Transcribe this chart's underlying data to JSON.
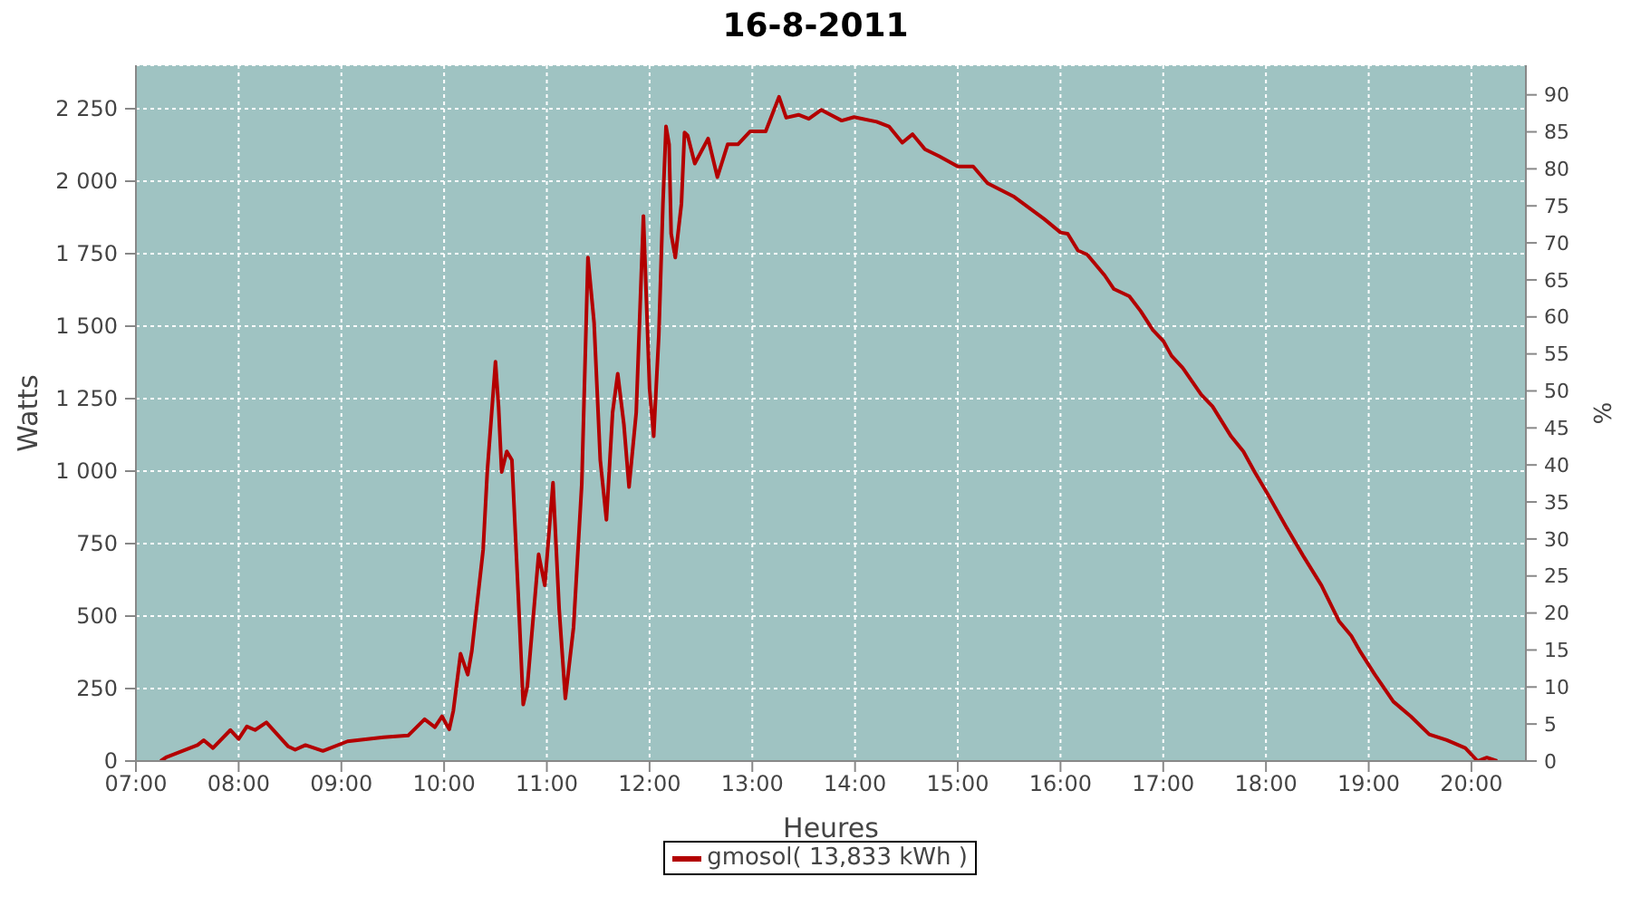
{
  "chart_data": {
    "type": "line",
    "title": "16-8-2011",
    "xlabel": "Heures",
    "ylabel": "Watts",
    "y2label": "%",
    "xlim": [
      7,
      20.53
    ],
    "xticks": [
      {
        "value": 7,
        "label": "07:00"
      },
      {
        "value": 8,
        "label": "08:00"
      },
      {
        "value": 9,
        "label": "09:00"
      },
      {
        "value": 10,
        "label": "10:00"
      },
      {
        "value": 11,
        "label": "11:00"
      },
      {
        "value": 12,
        "label": "12:00"
      },
      {
        "value": 13,
        "label": "13:00"
      },
      {
        "value": 14,
        "label": "14:00"
      },
      {
        "value": 15,
        "label": "15:00"
      },
      {
        "value": 16,
        "label": "16:00"
      },
      {
        "value": 17,
        "label": "17:00"
      },
      {
        "value": 18,
        "label": "18:00"
      },
      {
        "value": 19,
        "label": "19:00"
      },
      {
        "value": 20,
        "label": "20:00"
      }
    ],
    "ylim": [
      0,
      2400
    ],
    "yticks": [
      0,
      250,
      500,
      750,
      {
        "value": 1000,
        "label": "1 000"
      },
      {
        "value": 1250,
        "label": "1 250"
      },
      {
        "value": 1500,
        "label": "1 500"
      },
      {
        "value": 1750,
        "label": "1 750"
      },
      {
        "value": 2000,
        "label": "2 000"
      },
      {
        "value": 2250,
        "label": "2 250"
      }
    ],
    "y2lim": [
      0,
      94
    ],
    "y2ticks": [
      0,
      5,
      10,
      15,
      20,
      25,
      30,
      35,
      40,
      45,
      50,
      55,
      60,
      65,
      70,
      75,
      80,
      85,
      90
    ],
    "grid": true,
    "legend": "bottom",
    "marker": "none",
    "line_style": "solid",
    "x": [
      7.24,
      7.3,
      7.6,
      7.66,
      7.75,
      7.92,
      8.0,
      8.08,
      8.16,
      8.27,
      8.48,
      8.55,
      8.65,
      8.82,
      9.06,
      9.41,
      9.65,
      9.81,
      9.91,
      9.98,
      10.05,
      10.09,
      10.16,
      10.23,
      10.27,
      10.38,
      10.42,
      10.5,
      10.53,
      10.56,
      10.61,
      10.66,
      10.72,
      10.77,
      10.81,
      10.92,
      10.98,
      11.06,
      11.12,
      11.18,
      11.26,
      11.34,
      11.4,
      11.46,
      11.52,
      11.58,
      11.64,
      11.69,
      11.75,
      11.8,
      11.87,
      11.94,
      12.0,
      12.04,
      12.09,
      12.13,
      12.16,
      12.19,
      12.21,
      12.25,
      12.31,
      12.34,
      12.37,
      12.44,
      12.57,
      12.66,
      12.76,
      12.86,
      12.98,
      13.13,
      13.26,
      13.33,
      13.45,
      13.55,
      13.67,
      13.87,
      13.99,
      14.21,
      14.33,
      14.46,
      14.56,
      14.68,
      14.82,
      15.0,
      15.15,
      15.29,
      15.55,
      15.84,
      16.0,
      16.07,
      16.17,
      16.26,
      16.43,
      16.52,
      16.67,
      16.78,
      16.9,
      17.0,
      17.08,
      17.19,
      17.37,
      17.48,
      17.66,
      17.78,
      17.89,
      18.01,
      18.19,
      18.36,
      18.54,
      18.71,
      18.83,
      18.92,
      19.06,
      19.24,
      19.41,
      19.59,
      19.76,
      19.94,
      20.06,
      20.15,
      20.25
    ],
    "series": [
      {
        "name": "gmosol( 13,833 kWh )",
        "color": "#b30000",
        "values": [
          0,
          14,
          55,
          72,
          45,
          107,
          76,
          119,
          107,
          133,
          51,
          39,
          55,
          35,
          68,
          82,
          88,
          144,
          117,
          154,
          109,
          174,
          370,
          298,
          380,
          729,
          997,
          1377,
          1223,
          997,
          1068,
          1038,
          586,
          195,
          257,
          713,
          606,
          960,
          524,
          216,
          462,
          956,
          1737,
          1511,
          1038,
          832,
          1202,
          1336,
          1161,
          945,
          1202,
          1880,
          1284,
          1120,
          1469,
          1922,
          2189,
          2127,
          1819,
          1737,
          1922,
          2168,
          2158,
          2061,
          2147,
          2014,
          2127,
          2127,
          2172,
          2172,
          2291,
          2219,
          2229,
          2215,
          2246,
          2209,
          2221,
          2205,
          2189,
          2133,
          2162,
          2110,
          2086,
          2051,
          2051,
          1993,
          1946,
          1870,
          1823,
          1819,
          1761,
          1747,
          1675,
          1628,
          1603,
          1552,
          1486,
          1449,
          1398,
          1356,
          1264,
          1223,
          1120,
          1068,
          997,
          925,
          812,
          709,
          606,
          483,
          432,
          376,
          298,
          205,
          154,
          92,
          72,
          45,
          0,
          12,
          0
        ]
      }
    ]
  }
}
